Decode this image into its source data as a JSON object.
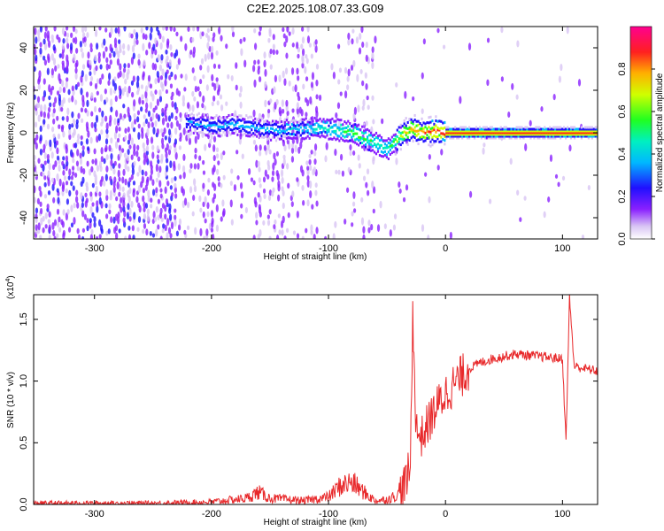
{
  "title": "C2E2.2025.108.07.33.G09",
  "chart_data": [
    {
      "type": "heatmap",
      "xlabel": "Height of straight line (km)",
      "ylabel": "Frequency (Hz)",
      "xlim": [
        -352,
        130
      ],
      "ylim": [
        -50,
        50
      ],
      "xticks": [
        -300,
        -200,
        -100,
        0,
        100
      ],
      "yticks": [
        -40,
        -20,
        0,
        20,
        40
      ],
      "colorbar": {
        "label": "Normalized spectral amplitude",
        "ticks": [
          0.0,
          0.2,
          0.4,
          0.6,
          0.8
        ],
        "range": [
          0,
          1
        ],
        "colors": [
          "#ffffff",
          "#c8a8f0",
          "#7f00ff",
          "#1010ff",
          "#00e0ff",
          "#00ff40",
          "#c0ff00",
          "#ffcc00",
          "#ff3010",
          "#ff00c0"
        ]
      },
      "ridge": {
        "x": [
          -220,
          -200,
          -180,
          -160,
          -140,
          -120,
          -100,
          -80,
          -60,
          -50,
          -40,
          -30,
          -20,
          -10,
          0,
          50,
          100,
          130
        ],
        "freq": [
          5,
          3,
          4,
          2,
          1,
          2,
          2,
          0,
          -5,
          -8,
          -2,
          2,
          0,
          1,
          0,
          0,
          0,
          0
        ],
        "amplitude": [
          0.35,
          0.4,
          0.4,
          0.4,
          0.42,
          0.45,
          0.5,
          0.6,
          0.55,
          0.5,
          0.7,
          0.85,
          0.85,
          0.9,
          0.95,
          0.95,
          0.95,
          0.95
        ]
      },
      "noise_columns": [
        -352,
        -300,
        -250,
        -200,
        -150,
        -100,
        -70
      ]
    },
    {
      "type": "line",
      "xlabel": "Height of straight line (km)",
      "ylabel": "SNR (10 * v/v)",
      "y_scale_label": "(x10",
      "y_scale_exponent": "4",
      "xlim": [
        -352,
        130
      ],
      "ylim": [
        0,
        1.7
      ],
      "xticks": [
        -300,
        -200,
        -100,
        0,
        100
      ],
      "yticks": [
        "0.0",
        "0.5",
        "1.0",
        "1.5"
      ],
      "color": "#e8292b",
      "series": [
        {
          "x": [
            -352,
            -250,
            -200,
            -170,
            -160,
            -150,
            -120,
            -100,
            -90,
            -80,
            -70,
            -60,
            -50,
            -40,
            -35,
            -30,
            -28,
            -25,
            -20,
            -10,
            0,
            10,
            20,
            30,
            40,
            60,
            80,
            100,
            103,
            106,
            110,
            130
          ],
          "y": [
            0.01,
            0.01,
            0.02,
            0.05,
            0.1,
            0.05,
            0.03,
            0.06,
            0.15,
            0.18,
            0.1,
            0.03,
            0.04,
            0.08,
            0.15,
            0.3,
            1.55,
            0.6,
            0.55,
            0.75,
            0.9,
            1.0,
            1.1,
            1.15,
            1.18,
            1.22,
            1.2,
            1.18,
            0.5,
            1.68,
            1.12,
            1.08
          ]
        }
      ]
    }
  ]
}
